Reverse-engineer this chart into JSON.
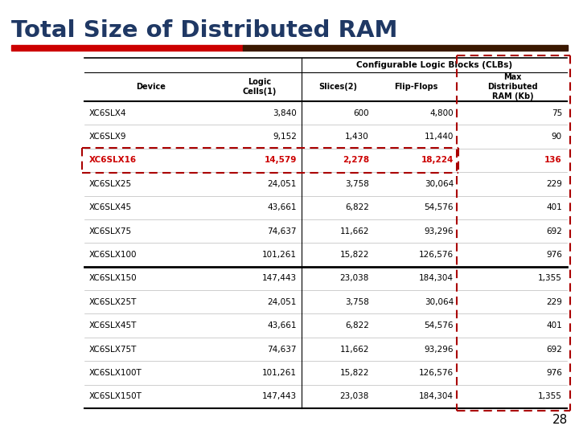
{
  "title": "Total Size of Distributed RAM",
  "slide_number": "28",
  "title_color": "#1F3864",
  "col_header_top": "Configurable Logic Blocks (CLBs)",
  "col_headers": [
    "Device",
    "Logic\nCells(1)",
    "Slices(2)",
    "Flip-Flops",
    "Max\nDistributed\nRAM (Kb)"
  ],
  "rows": [
    [
      "XC6SLX4",
      "3,840",
      "600",
      "4,800",
      "75"
    ],
    [
      "XC6SLX9",
      "9,152",
      "1,430",
      "11,440",
      "90"
    ],
    [
      "XC6SLX16",
      "14,579",
      "2,278",
      "18,224",
      "136"
    ],
    [
      "XC6SLX25",
      "24,051",
      "3,758",
      "30,064",
      "229"
    ],
    [
      "XC6SLX45",
      "43,661",
      "6,822",
      "54,576",
      "401"
    ],
    [
      "XC6SLX75",
      "74,637",
      "11,662",
      "93,296",
      "692"
    ],
    [
      "XC6SLX100",
      "101,261",
      "15,822",
      "126,576",
      "976"
    ],
    [
      "XC6SLX150",
      "147,443",
      "23,038",
      "184,304",
      "1,355"
    ],
    [
      "XC6SLX25T",
      "24,051",
      "3,758",
      "30,064",
      "229"
    ],
    [
      "XC6SLX45T",
      "43,661",
      "6,822",
      "54,576",
      "401"
    ],
    [
      "XC6SLX75T",
      "74,637",
      "11,662",
      "93,296",
      "692"
    ],
    [
      "XC6SLX100T",
      "101,261",
      "15,822",
      "126,576",
      "976"
    ],
    [
      "XC6SLX150T",
      "147,443",
      "23,038",
      "184,304",
      "1,355"
    ]
  ],
  "highlight_row_idx": 2,
  "highlight_color": "#CC0000",
  "dashed_color": "#AA0000",
  "separator_after_row": 7,
  "background_color": "#FFFFFF",
  "bar_color_left": "#CC0000",
  "bar_color_right": "#3A1800"
}
